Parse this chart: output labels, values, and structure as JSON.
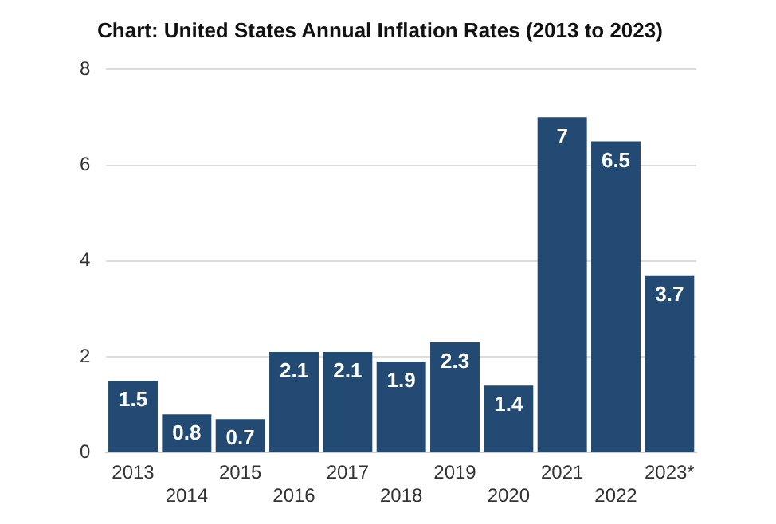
{
  "chart_data": {
    "type": "bar",
    "title": "Chart: United States Annual Inflation Rates (2013 to 2023)",
    "categories": [
      "2013",
      "2014",
      "2015",
      "2016",
      "2017",
      "2018",
      "2019",
      "2020",
      "2021",
      "2022",
      "2023*"
    ],
    "values": [
      1.5,
      0.8,
      0.7,
      2.1,
      2.1,
      1.9,
      2.3,
      1.4,
      7,
      6.5,
      3.7
    ],
    "color": "#234a72",
    "ylim": [
      0,
      8
    ],
    "yticks": [
      0,
      2,
      4,
      6,
      8
    ],
    "grid": "y",
    "data_labels": true,
    "legend": false
  }
}
